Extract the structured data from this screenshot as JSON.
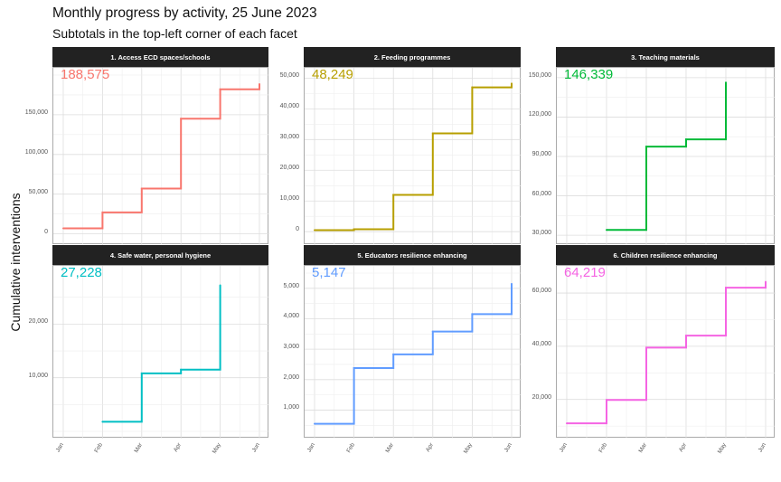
{
  "title": "Monthly progress by activity, 25 June 2023",
  "subtitle": "Subtotals in the top-left corner of each facet",
  "chart_data": {
    "type": "line",
    "step": true,
    "ylabel": "Cumulative interventions",
    "x_ticks": [
      "Jan",
      "Feb",
      "Mar",
      "Apr",
      "May",
      "Jun"
    ],
    "grid": true,
    "facets": [
      {
        "name": "1. Access ECD spaces/schools",
        "subtotal_label": "188,575",
        "color": "#F8766D",
        "x": [
          "Jan",
          "Feb",
          "Mar",
          "Apr",
          "May",
          "Jun"
        ],
        "y": [
          7000,
          27000,
          57000,
          145000,
          182000,
          188575
        ],
        "ylim": [
          -5000,
          200000
        ],
        "yticks": [
          0,
          50000,
          100000,
          150000
        ],
        "ytick_labels": [
          "0",
          "50,000",
          "100,000",
          "150,000"
        ]
      },
      {
        "name": "2. Feeding programmes",
        "subtotal_label": "48,249",
        "color": "#B79F00",
        "x": [
          "Jan",
          "Feb",
          "Mar",
          "Apr",
          "May",
          "Jun"
        ],
        "y": [
          500,
          800,
          12000,
          32000,
          47000,
          48249
        ],
        "ylim": [
          -2000,
          51000
        ],
        "yticks": [
          0,
          10000,
          20000,
          30000,
          40000,
          50000
        ],
        "ytick_labels": [
          "0",
          "10,000",
          "20,000",
          "30,000",
          "40,000",
          "50,000"
        ]
      },
      {
        "name": "3. Teaching materials",
        "subtotal_label": "146,339",
        "color": "#00BA38",
        "x": [
          "Feb",
          "Mar",
          "Apr",
          "May"
        ],
        "y": [
          34000,
          97500,
          103000,
          146339
        ],
        "ylim": [
          28000,
          152000
        ],
        "yticks": [
          30000,
          60000,
          90000,
          120000,
          150000
        ],
        "ytick_labels": [
          "30,000",
          "60,000",
          "90,000",
          "120,000",
          "150,000"
        ]
      },
      {
        "name": "4. Safe water, personal hygiene",
        "subtotal_label": "27,228",
        "color": "#00BFC4",
        "x": [
          "Feb",
          "Mar",
          "Apr",
          "May"
        ],
        "y": [
          1800,
          10800,
          11500,
          27228
        ],
        "ylim": [
          0,
          29500
        ],
        "yticks": [
          10000,
          20000
        ],
        "ytick_labels": [
          "10,000",
          "20,000"
        ]
      },
      {
        "name": "5. Educators resilience enhancing",
        "subtotal_label": "5,147",
        "color": "#619CFF",
        "x": [
          "Jan",
          "Feb",
          "Mar",
          "Apr",
          "May",
          "Jun"
        ],
        "y": [
          550,
          2380,
          2830,
          3580,
          4150,
          5147
        ],
        "ylim": [
          300,
          5500
        ],
        "yticks": [
          1000,
          2000,
          3000,
          4000,
          5000
        ],
        "ytick_labels": [
          "1,000",
          "2,000",
          "3,000",
          "4,000",
          "5,000"
        ]
      },
      {
        "name": "6. Children resilience enhancing",
        "subtotal_label": "64,219",
        "color": "#F564E3",
        "x": [
          "Jan",
          "Feb",
          "Mar",
          "Apr",
          "May",
          "Jun"
        ],
        "y": [
          11000,
          19800,
          39500,
          44000,
          62000,
          64219
        ],
        "ylim": [
          8000,
          67500
        ],
        "yticks": [
          20000,
          40000,
          60000
        ],
        "ytick_labels": [
          "20,000",
          "40,000",
          "60,000"
        ]
      }
    ]
  }
}
